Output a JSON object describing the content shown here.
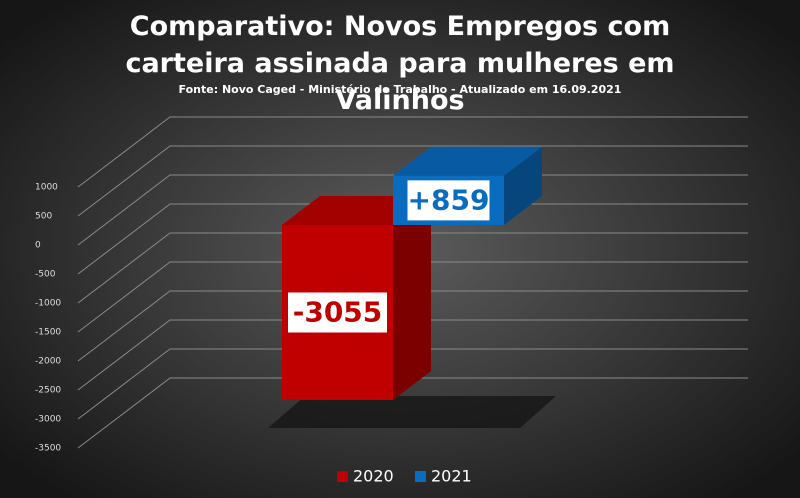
{
  "chart_data": {
    "type": "bar",
    "title": "Comparativo: Novos Empregos com carteira assinada para mulheres em Valinhos",
    "subtitle": "Fonte: Novo Caged - Ministério do Trabalho - Atualizado em 16.09.2021",
    "categories": [
      null
    ],
    "series": [
      {
        "name": "2020",
        "color": "#c00000",
        "values": [
          -3055
        ],
        "value_labels": [
          "-3055"
        ]
      },
      {
        "name": "2021",
        "color": "#0a6cbf",
        "values": [
          859
        ],
        "value_labels": [
          "+859"
        ]
      }
    ],
    "ylim": [
      -3500,
      1000
    ],
    "yticks": [
      -3500,
      -3000,
      -2500,
      -2000,
      -1500,
      -1000,
      -500,
      0,
      500,
      1000
    ],
    "grid": true,
    "legend": "bottom"
  }
}
